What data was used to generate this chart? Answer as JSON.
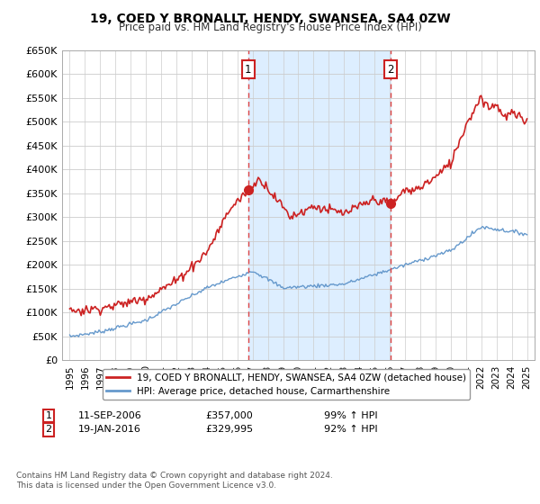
{
  "title": "19, COED Y BRONALLT, HENDY, SWANSEA, SA4 0ZW",
  "subtitle": "Price paid vs. HM Land Registry's House Price Index (HPI)",
  "ylim": [
    0,
    650000
  ],
  "yticks": [
    0,
    50000,
    100000,
    150000,
    200000,
    250000,
    300000,
    350000,
    400000,
    450000,
    500000,
    550000,
    600000,
    650000
  ],
  "xlim_start": 1994.5,
  "xlim_end": 2025.5,
  "purchase1_year": 2006.7,
  "purchase1_price": 357000,
  "purchase1_label": "1",
  "purchase1_date": "11-SEP-2006",
  "purchase1_hpi_pct": "99% ↑ HPI",
  "purchase2_year": 2016.05,
  "purchase2_price": 329995,
  "purchase2_label": "2",
  "purchase2_date": "19-JAN-2016",
  "purchase2_hpi_pct": "92% ↑ HPI",
  "line_color_red": "#cc2222",
  "line_color_blue": "#6699cc",
  "vline_color": "#dd4444",
  "shade_color": "#ddeeff",
  "background_color": "#ffffff",
  "legend_line1": "19, COED Y BRONALLT, HENDY, SWANSEA, SA4 0ZW (detached house)",
  "legend_line2": "HPI: Average price, detached house, Carmarthenshire",
  "footer1": "Contains HM Land Registry data © Crown copyright and database right 2024.",
  "footer2": "This data is licensed under the Open Government Licence v3.0.",
  "marker_box_color": "#cc2222"
}
